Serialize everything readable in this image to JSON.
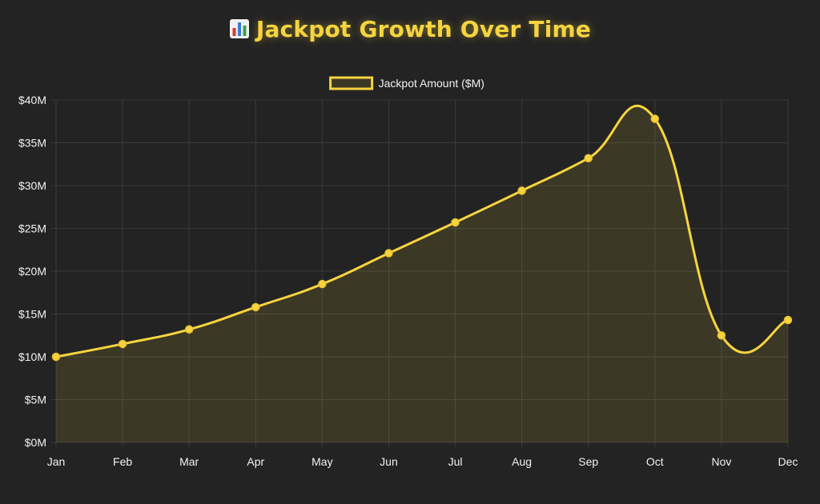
{
  "colors": {
    "background": "#232323",
    "accent": "#f6d43f",
    "grid": "#3a3a3a",
    "text": "#f2f2f2"
  },
  "title": {
    "icon": "bar-chart-emoji",
    "text": "Jackpot Growth Over Time"
  },
  "chart_data": {
    "type": "line",
    "title": "Jackpot Growth Over Time",
    "categories": [
      "Jan",
      "Feb",
      "Mar",
      "Apr",
      "May",
      "Jun",
      "Jul",
      "Aug",
      "Sep",
      "Oct",
      "Nov",
      "Dec"
    ],
    "series": [
      {
        "name": "Jackpot Amount ($M)",
        "values": [
          10.0,
          11.5,
          13.2,
          15.8,
          18.5,
          22.1,
          25.7,
          29.4,
          33.2,
          37.8,
          12.5,
          14.3
        ]
      }
    ],
    "y_ticks": [
      "$0M",
      "$5M",
      "$10M",
      "$15M",
      "$20M",
      "$25M",
      "$30M",
      "$35M",
      "$40M"
    ],
    "ylim": [
      0,
      40
    ],
    "y_step": 5,
    "grid": true,
    "legend_position": "top-center",
    "fill_area": true,
    "smooth": true
  }
}
